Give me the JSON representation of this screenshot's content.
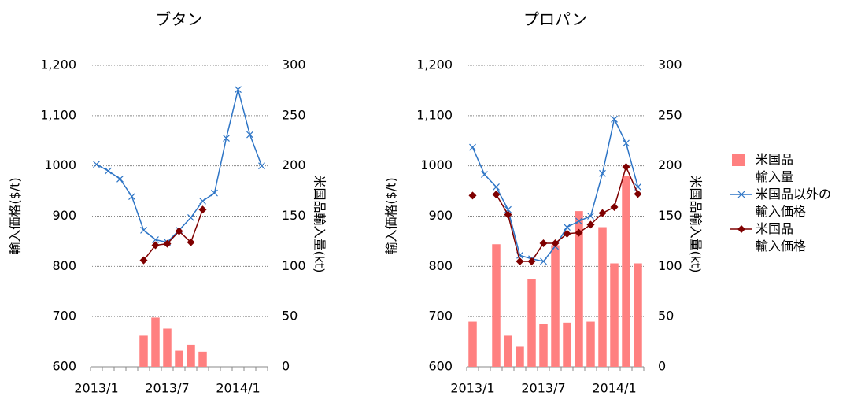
{
  "chart_data": [
    {
      "type": "combo",
      "title": "ブタン",
      "ylabel": "輸入価格($/t)",
      "y2label": "米国品輸入量(kt)",
      "categories": [
        "2013/1",
        null,
        null,
        null,
        null,
        null,
        "2013/7",
        null,
        null,
        null,
        null,
        null,
        "2014/1",
        null,
        null
      ],
      "ylim": [
        600,
        1200
      ],
      "yticks": [
        600,
        700,
        800,
        900,
        1000,
        {
          "value": 1100,
          "label": "1,100"
        },
        {
          "value": 1200,
          "label": "1,200"
        }
      ],
      "y2lim": [
        0,
        300
      ],
      "y2ticks": [
        0,
        50,
        100,
        150,
        200,
        250,
        300
      ],
      "grid": true,
      "series": [
        {
          "type": "bar",
          "axis": "y2",
          "color": "#ff8080",
          "values": [
            null,
            null,
            null,
            null,
            31,
            49,
            38,
            16,
            22,
            15,
            null,
            null,
            null,
            null,
            null
          ]
        },
        {
          "type": "line",
          "marker": "x",
          "color": "#2e75c6",
          "values": [
            1003,
            990,
            974,
            939,
            872,
            853,
            848,
            872,
            897,
            930,
            946,
            1055,
            1152,
            1062,
            1000
          ]
        },
        {
          "type": "line",
          "marker": "diamond",
          "color": "#7f0000",
          "values": [
            null,
            null,
            null,
            null,
            812,
            842,
            845,
            870,
            848,
            913,
            null,
            null,
            null,
            null,
            null
          ]
        }
      ]
    },
    {
      "type": "combo",
      "title": "プロパン",
      "ylabel": "輸入価格($/t)",
      "y2label": "米国品輸入量(kt)",
      "categories": [
        "2013/1",
        null,
        null,
        null,
        null,
        null,
        "2013/7",
        null,
        null,
        null,
        null,
        null,
        "2014/1",
        null,
        null
      ],
      "ylim": [
        600,
        1200
      ],
      "yticks": [
        600,
        700,
        800,
        900,
        1000,
        {
          "value": 1100,
          "label": "1,100"
        },
        {
          "value": 1200,
          "label": "1,200"
        }
      ],
      "y2lim": [
        0,
        300
      ],
      "y2ticks": [
        0,
        50,
        100,
        150,
        200,
        250,
        300
      ],
      "grid": true,
      "series": [
        {
          "name": "米国品\n輸入量",
          "type": "bar",
          "axis": "y2",
          "color": "#ff8080",
          "values": [
            45,
            null,
            122,
            31,
            20,
            87,
            43,
            121,
            44,
            155,
            45,
            139,
            103,
            190,
            103
          ]
        },
        {
          "name": "米国品以外の\n輸入価格",
          "type": "line",
          "marker": "x",
          "color": "#2e75c6",
          "values": [
            1037,
            983,
            958,
            913,
            822,
            815,
            810,
            840,
            878,
            890,
            900,
            985,
            1093,
            1045,
            958
          ]
        },
        {
          "name": "米国品\n輸入価格",
          "type": "line",
          "marker": "diamond",
          "color": "#7f0000",
          "values": [
            941,
            null,
            943,
            903,
            810,
            810,
            846,
            846,
            865,
            867,
            883,
            906,
            918,
            998,
            944
          ]
        }
      ]
    }
  ]
}
